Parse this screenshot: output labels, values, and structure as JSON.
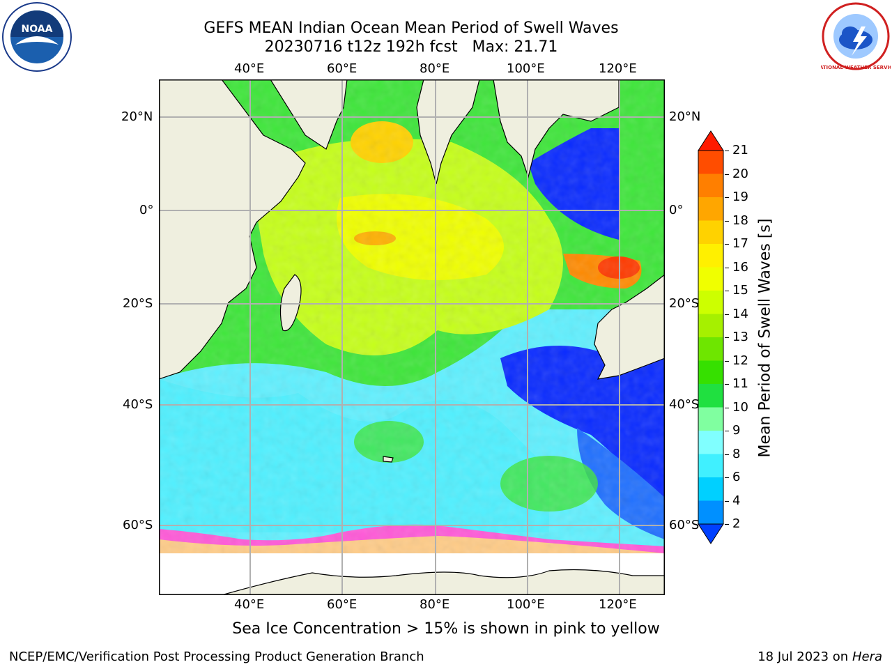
{
  "header": {
    "title": "GEFS MEAN Indian Ocean Mean Period of Swell Waves",
    "subtitle": "20230716 t12z 192h fcst   Max: 21.71"
  },
  "logos": {
    "left": "NOAA",
    "right": "NATIONAL WEATHER SERVICE"
  },
  "map": {
    "lon_labels": [
      "40°E",
      "60°E",
      "80°E",
      "100°E",
      "120°E"
    ],
    "lat_labels": [
      "20°N",
      "0°",
      "20°S",
      "40°S",
      "60°S"
    ],
    "grid": true
  },
  "colorbar": {
    "label": "Mean Period of Swell Waves [s]",
    "ticks": [
      "21",
      "20",
      "19",
      "18",
      "17",
      "16",
      "15",
      "14",
      "13",
      "12",
      "11",
      "10",
      "9",
      "8",
      "6",
      "4",
      "2"
    ],
    "colors": [
      "#ff1a00",
      "#ff4d00",
      "#ff7f00",
      "#ffa600",
      "#ffd200",
      "#fff000",
      "#f0ff00",
      "#cdff00",
      "#a6f000",
      "#6ee600",
      "#36e000",
      "#20e040",
      "#80ffa0",
      "#80ffff",
      "#40f0ff",
      "#00d0ff",
      "#0090ff",
      "#0040ff"
    ]
  },
  "footer": {
    "note": "Sea Ice Concentration > 15% is shown in pink to yellow",
    "credit": "NCEP/EMC/Verification Post Processing Product Generation Branch",
    "date": "18 Jul 2023 on ",
    "host": "Hera"
  }
}
